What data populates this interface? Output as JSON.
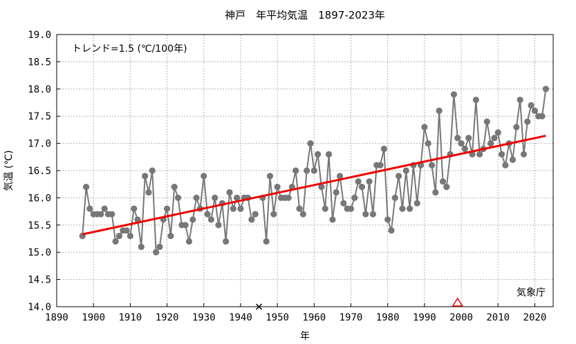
{
  "chart_data": {
    "type": "line",
    "title": "神戸　年平均気温　1897-2023年",
    "xlabel": "年",
    "ylabel": "気温 (℃)",
    "xlim": [
      1890,
      2025
    ],
    "ylim": [
      14.0,
      19.0
    ],
    "x_ticks": [
      1890,
      1900,
      1910,
      1920,
      1930,
      1940,
      1950,
      1960,
      1970,
      1980,
      1990,
      2000,
      2010,
      2020
    ],
    "y_ticks": [
      "14.0",
      "14.5",
      "15.0",
      "15.5",
      "16.0",
      "16.5",
      "17.0",
      "17.5",
      "18.0",
      "18.5",
      "19.0"
    ],
    "grid": true,
    "trend_label": "トレンド=1.5 (℃/100年)",
    "source_label": "気象庁",
    "colors": {
      "series": "#777777",
      "trend": "#ee0000",
      "marker_relocation": "#ee0000",
      "marker_gap": "#000000"
    },
    "series": [
      {
        "x": [
          1897,
          1898,
          1899,
          1900,
          1901,
          1902,
          1903,
          1904,
          1905,
          1906,
          1907,
          1908,
          1909,
          1910,
          1911,
          1912,
          1913,
          1914,
          1915,
          1916,
          1917,
          1918,
          1919,
          1920,
          1921,
          1922,
          1923,
          1924,
          1925,
          1926,
          1927,
          1928,
          1929,
          1930,
          1931,
          1932,
          1933,
          1934,
          1935,
          1936,
          1937,
          1938,
          1939,
          1940,
          1941,
          1942,
          1943,
          1944,
          1946,
          1947,
          1948,
          1949,
          1950,
          1951,
          1952,
          1953,
          1954,
          1955,
          1956,
          1957,
          1958,
          1959,
          1960,
          1961,
          1962,
          1963,
          1964,
          1965,
          1966,
          1967,
          1968,
          1969,
          1970,
          1971,
          1972,
          1973,
          1974,
          1975,
          1976,
          1977,
          1978,
          1979,
          1980,
          1981,
          1982,
          1983,
          1984,
          1985,
          1986,
          1987,
          1988,
          1989,
          1990,
          1991,
          1992,
          1993,
          1994,
          1995,
          1996,
          1997,
          1998,
          1999,
          2000,
          2001,
          2002,
          2003,
          2004,
          2005,
          2006,
          2007,
          2008,
          2009,
          2010,
          2011,
          2012,
          2013,
          2014,
          2015,
          2016,
          2017,
          2018,
          2019,
          2020,
          2021,
          2022,
          2023
        ],
        "values": [
          15.3,
          16.2,
          15.8,
          15.7,
          15.7,
          15.7,
          15.8,
          15.7,
          15.7,
          15.2,
          15.3,
          15.4,
          15.4,
          15.3,
          15.8,
          15.6,
          15.1,
          16.4,
          16.1,
          16.5,
          15.0,
          15.1,
          15.6,
          15.8,
          15.3,
          16.2,
          16.0,
          15.5,
          15.5,
          15.2,
          15.6,
          16.0,
          15.8,
          16.4,
          15.7,
          15.6,
          16.0,
          15.5,
          15.9,
          15.2,
          16.1,
          15.8,
          16.0,
          15.8,
          16.0,
          16.0,
          15.6,
          15.7,
          16.0,
          15.2,
          16.4,
          15.7,
          16.2,
          16.0,
          16.0,
          16.0,
          16.2,
          16.5,
          15.8,
          15.7,
          16.5,
          17.0,
          16.5,
          16.8,
          16.2,
          15.8,
          16.8,
          15.6,
          16.1,
          16.4,
          15.9,
          15.8,
          15.8,
          16.0,
          16.3,
          16.2,
          15.7,
          16.3,
          15.7,
          16.6,
          16.6,
          16.9,
          15.6,
          15.4,
          16.0,
          16.4,
          15.8,
          16.5,
          15.8,
          16.6,
          15.9,
          16.6,
          17.3,
          17.0,
          16.6,
          16.1,
          17.6,
          16.3,
          16.2,
          16.8,
          17.9,
          17.1,
          17.0,
          16.9,
          17.1,
          16.8,
          17.8,
          16.8,
          16.9,
          17.4,
          17.0,
          17.1,
          17.2,
          16.8,
          16.6,
          17.0,
          16.7,
          17.3,
          17.8,
          16.8,
          17.4,
          17.7,
          17.6,
          17.5,
          17.5,
          18.0
        ]
      }
    ],
    "trend": {
      "x": [
        1897,
        2023
      ],
      "values": [
        15.33,
        17.14
      ]
    },
    "markers": [
      {
        "kind": "cross",
        "x": 1945,
        "y": 14.0
      },
      {
        "kind": "triangle",
        "x": 1999,
        "y": 14.0
      }
    ]
  }
}
